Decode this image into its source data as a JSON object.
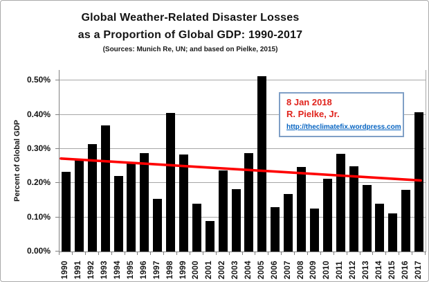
{
  "title": {
    "line1": "Global Weather-Related Disaster Losses",
    "line2": "as a Proportion of Global GDP: 1990-2017",
    "sources": "(Sources: Munich Re, UN; and based on Pielke, 2015)"
  },
  "annotation": {
    "date": "8 Jan 2018",
    "author": "R. Pielke, Jr.",
    "url": "http://theclimatefix.wordpress.com",
    "text_color": "#e0231c",
    "link_color": "#0563c1",
    "border_color": "#7f9fc6"
  },
  "chart_data": {
    "type": "bar",
    "title": "Global Weather-Related Disaster Losses as a Proportion of Global GDP: 1990-2017",
    "subtitle": "(Sources: Munich Re, UN; and based on Pielke, 2015)",
    "xlabel": "",
    "ylabel": "Percent of Global GDP",
    "unit": "%",
    "categories": [
      "1990",
      "1991",
      "1992",
      "1993",
      "1994",
      "1995",
      "1996",
      "1997",
      "1998",
      "1999",
      "2000",
      "2001",
      "2002",
      "2003",
      "2004",
      "2005",
      "2006",
      "2007",
      "2008",
      "2009",
      "2010",
      "2011",
      "2012",
      "2013",
      "2014",
      "2015",
      "2016",
      "2017"
    ],
    "values": [
      0.233,
      0.268,
      0.315,
      0.368,
      0.221,
      0.258,
      0.287,
      0.154,
      0.406,
      0.283,
      0.14,
      0.089,
      0.237,
      0.182,
      0.287,
      0.513,
      0.129,
      0.169,
      0.248,
      0.125,
      0.212,
      0.286,
      0.25,
      0.195,
      0.14,
      0.112,
      0.181,
      0.408
    ],
    "ylim": [
      0,
      0.531
    ],
    "yticks": [
      {
        "value": 0.0,
        "label": "0.00%"
      },
      {
        "value": 0.1,
        "label": "0.10%"
      },
      {
        "value": 0.2,
        "label": "0.20%"
      },
      {
        "value": 0.3,
        "label": "0.30%"
      },
      {
        "value": 0.4,
        "label": "0.40%"
      },
      {
        "value": 0.5,
        "label": "0.50%"
      }
    ],
    "grid": true,
    "legend": "none",
    "bar_color": "#000000",
    "gridline_color": "#a6a6a6",
    "axis_color": "#808080",
    "trendline": {
      "type": "linear",
      "start_value": 0.272,
      "end_value": 0.208,
      "color": "#fe0000"
    }
  }
}
